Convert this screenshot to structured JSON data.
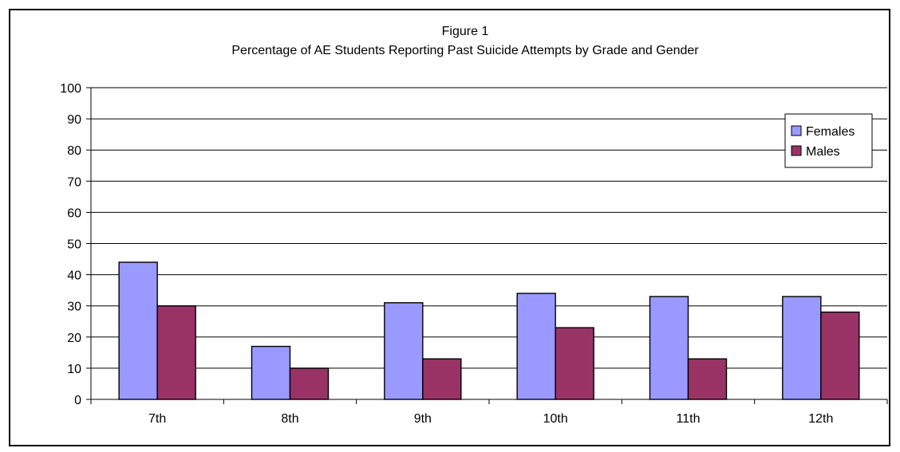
{
  "chart_data": {
    "type": "bar",
    "title": "Figure 1",
    "subtitle": "Percentage of AE Students Reporting Past Suicide Attempts by Grade and Gender",
    "categories": [
      "7th",
      "8th",
      "9th",
      "10th",
      "11th",
      "12th"
    ],
    "series": [
      {
        "name": "Females",
        "color": "#9999ff",
        "values": [
          44,
          17,
          31,
          34,
          33,
          33
        ]
      },
      {
        "name": "Males",
        "color": "#993366",
        "values": [
          30,
          10,
          13,
          23,
          13,
          28
        ]
      }
    ],
    "ylim": [
      0,
      100
    ],
    "yticks": [
      0,
      10,
      20,
      30,
      40,
      50,
      60,
      70,
      80,
      90,
      100
    ],
    "grid": true,
    "legend_position": "top-right"
  }
}
